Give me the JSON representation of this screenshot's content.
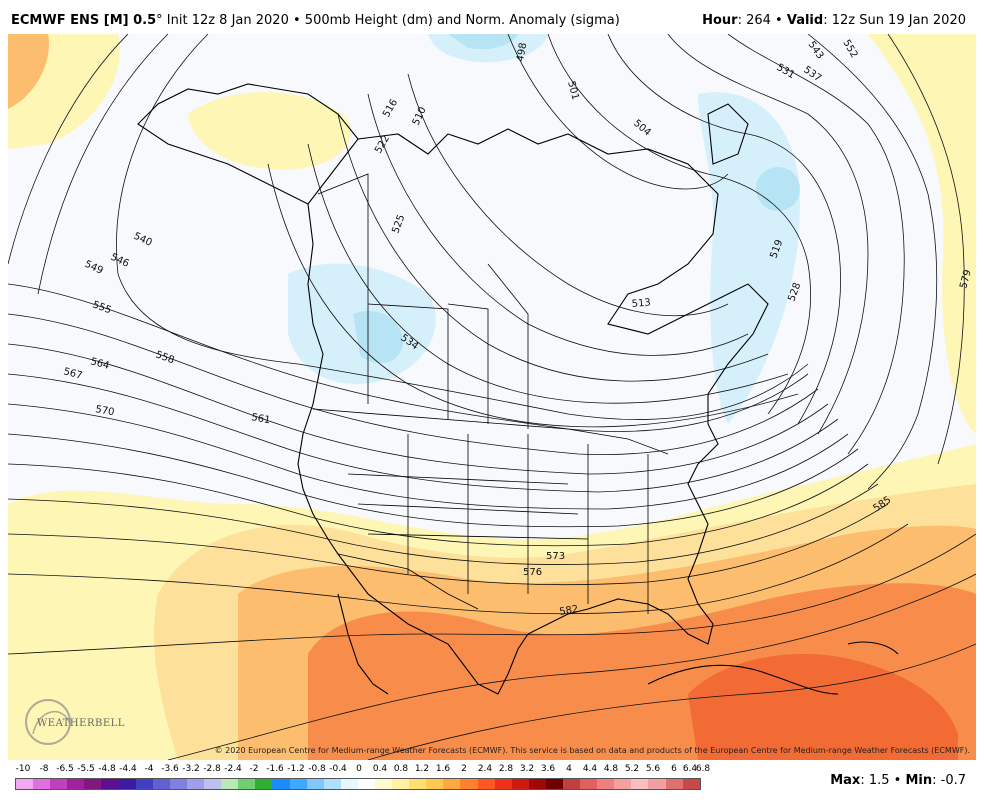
{
  "header": {
    "model": "ECMWF ENS [M] 0.5",
    "degree": "°",
    "init": " Init 12z 8 Jan 2020",
    "bullet": " • ",
    "field": "500mb Height (dm) and Norm. Anomaly (sigma)",
    "hour_label": "Hour",
    "hour_value": ": 264",
    "valid_label": "Valid",
    "valid_value": ": 12z Sun 19 Jan 2020"
  },
  "map": {
    "contour_labels": [
      "516",
      "510",
      "522",
      "525",
      "534",
      "540",
      "546",
      "549",
      "555",
      "558",
      "564",
      "567",
      "570",
      "561",
      "573",
      "576",
      "582",
      "585",
      "579",
      "513",
      "519",
      "528",
      "531",
      "537",
      "543",
      "552",
      "501",
      "498",
      "504"
    ],
    "colors": {
      "ocean_bg": "#f7f9fd",
      "pale_blue": "#d6f0fb",
      "light_blue": "#b7e4f5",
      "pale_yellow": "#fdf6b5",
      "light_orange": "#fde09a",
      "orange": "#fcbd6e",
      "deep_orange": "#f88d4b",
      "red_orange": "#f26b34",
      "contour": "#111111",
      "border": "#000000"
    }
  },
  "credit": "© 2020 European Centre for Medium-range Weather Forecasts (ECMWF). This service is based on data and products of the European Centre for Medium-range Weather Forecasts (ECMWF).",
  "logo": {
    "text": "WEATHERBELL"
  },
  "colorbar": {
    "ticks": [
      "-10",
      "-8",
      "-6.5",
      "-5.5",
      "-4.8",
      "-4.4",
      "-4",
      "-3.6",
      "-3.2",
      "-2.8",
      "-2.4",
      "-2",
      "-1.6",
      "-1.2",
      "-0.8",
      "-0.4",
      "0",
      "0.4",
      "0.8",
      "1.2",
      "1.6",
      "2",
      "2.4",
      "2.8",
      "3.2",
      "3.6",
      "4",
      "4.4",
      "4.8",
      "5.2",
      "5.6",
      "6",
      "6.4",
      "6.8"
    ],
    "swatches": [
      "#f0a8f0",
      "#e070e0",
      "#c040c0",
      "#a020a0",
      "#801880",
      "#5a1090",
      "#3a1aa0",
      "#4040c0",
      "#6060d0",
      "#8080e0",
      "#a0a0ea",
      "#c0c0f0",
      "#b8e8b8",
      "#70d070",
      "#30b030",
      "#1a8cff",
      "#40a8ff",
      "#80c8ff",
      "#b0e0ff",
      "#e8f6ff",
      "#ffffff",
      "#fffbd0",
      "#fff1a0",
      "#ffe070",
      "#ffc850",
      "#ffa840",
      "#ff8030",
      "#ff5820",
      "#f03018",
      "#d01810",
      "#a00808",
      "#700000",
      "#c04040",
      "#e06060",
      "#f08080",
      "#f4a0a0",
      "#f8c0c0",
      "#f0a0a0",
      "#e07070",
      "#c84848"
    ]
  },
  "maxmin": {
    "max_label": "Max",
    "max_value": ": 1.5",
    "sep": " • ",
    "min_label": "Min",
    "min_value": ": -0.7"
  }
}
